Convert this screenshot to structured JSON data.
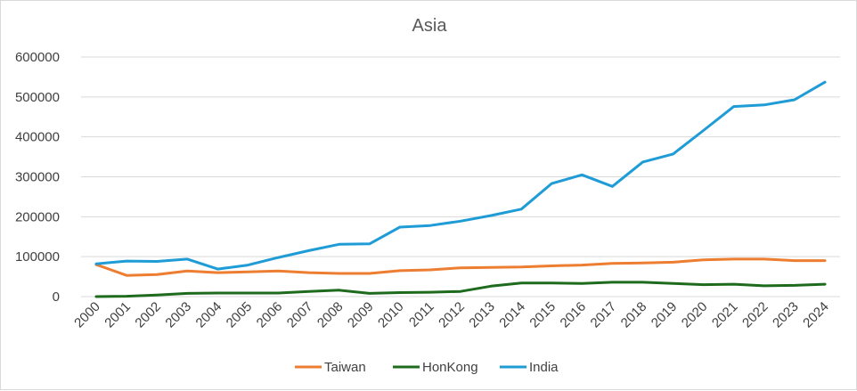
{
  "chart_data": {
    "type": "line",
    "title": "Asia",
    "xlabel": "",
    "ylabel": "",
    "x": [
      "2000",
      "2001",
      "2002",
      "2003",
      "2004",
      "2005",
      "2006",
      "2007",
      "2008",
      "2009",
      "2010",
      "2011",
      "2012",
      "2013",
      "2014",
      "2015",
      "2016",
      "2017",
      "2018",
      "2019",
      "2020",
      "2021",
      "2022",
      "2023",
      "2024"
    ],
    "ylim": [
      0,
      600000
    ],
    "yticks": [
      0,
      100000,
      200000,
      300000,
      400000,
      500000,
      600000
    ],
    "ytick_labels": [
      "0",
      "100000",
      "200000",
      "300000",
      "400000",
      "500000",
      "600000"
    ],
    "grid": true,
    "legend_position": "bottom",
    "series": [
      {
        "name": "Taiwan",
        "color": "#ED7D31",
        "values": [
          80000,
          53000,
          55000,
          64000,
          60000,
          62000,
          64000,
          60000,
          58000,
          58000,
          65000,
          67000,
          72000,
          73000,
          74000,
          77000,
          79000,
          83000,
          84000,
          86000,
          92000,
          94000,
          94000,
          90000,
          90000
        ]
      },
      {
        "name": "HonKong",
        "color": "#1E6B1E",
        "values": [
          0,
          1000,
          4000,
          8000,
          9000,
          9000,
          9000,
          13000,
          16000,
          8000,
          10000,
          11000,
          13000,
          26000,
          34000,
          34000,
          33000,
          36000,
          36000,
          33000,
          30000,
          31000,
          27000,
          28000,
          31000
        ]
      },
      {
        "name": "India",
        "color": "#1F9CD6",
        "values": [
          82000,
          89000,
          88000,
          94000,
          69000,
          79000,
          98000,
          115000,
          131000,
          132000,
          174000,
          178000,
          189000,
          203000,
          219000,
          283000,
          305000,
          276000,
          337000,
          357000,
          416000,
          476000,
          480000,
          493000,
          537000
        ]
      }
    ]
  }
}
